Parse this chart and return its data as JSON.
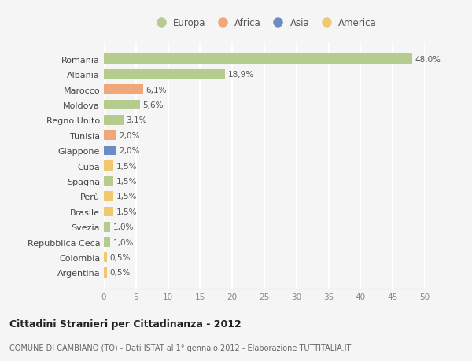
{
  "countries": [
    "Romania",
    "Albania",
    "Marocco",
    "Moldova",
    "Regno Unito",
    "Tunisia",
    "Giappone",
    "Cuba",
    "Spagna",
    "Perù",
    "Brasile",
    "Svezia",
    "Repubblica Ceca",
    "Colombia",
    "Argentina"
  ],
  "values": [
    48.0,
    18.9,
    6.1,
    5.6,
    3.1,
    2.0,
    2.0,
    1.5,
    1.5,
    1.5,
    1.5,
    1.0,
    1.0,
    0.5,
    0.5
  ],
  "labels": [
    "48,0%",
    "18,9%",
    "6,1%",
    "5,6%",
    "3,1%",
    "2,0%",
    "2,0%",
    "1,5%",
    "1,5%",
    "1,5%",
    "1,5%",
    "1,0%",
    "1,0%",
    "0,5%",
    "0,5%"
  ],
  "colors": [
    "#b5cc8e",
    "#b5cc8e",
    "#f0a87a",
    "#b5cc8e",
    "#b5cc8e",
    "#f0a87a",
    "#6b8dc4",
    "#f0c96e",
    "#b5cc8e",
    "#f0c96e",
    "#f0c96e",
    "#b5cc8e",
    "#b5cc8e",
    "#f0c96e",
    "#f0c96e"
  ],
  "legend_labels": [
    "Europa",
    "Africa",
    "Asia",
    "America"
  ],
  "legend_colors": [
    "#b5cc8e",
    "#f0a87a",
    "#6b8dc4",
    "#f0c96e"
  ],
  "title": "Cittadini Stranieri per Cittadinanza - 2012",
  "subtitle": "COMUNE DI CAMBIANO (TO) - Dati ISTAT al 1° gennaio 2012 - Elaborazione TUTTITALIA.IT",
  "xlim": [
    0,
    50
  ],
  "xticks": [
    0,
    5,
    10,
    15,
    20,
    25,
    30,
    35,
    40,
    45,
    50
  ],
  "background_color": "#f5f5f5",
  "grid_color": "#ffffff",
  "bar_height": 0.65
}
